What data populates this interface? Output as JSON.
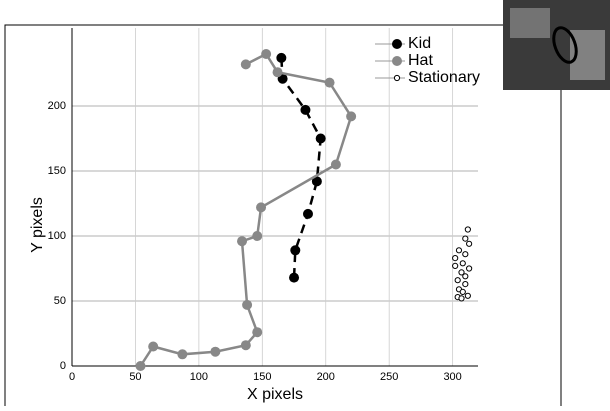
{
  "chart_data": {
    "type": "line",
    "xlabel": "X pixels",
    "ylabel": "Y pixels",
    "xlim": [
      0,
      320
    ],
    "ylim": [
      0,
      260
    ],
    "xticks": [
      0,
      50,
      100,
      150,
      200,
      250,
      300
    ],
    "yticks": [
      0,
      50,
      100,
      150,
      200
    ],
    "grid": true,
    "legend": "upper right",
    "series": [
      {
        "name": "Kid",
        "color": "#000000",
        "linestyle": "dashed",
        "marker": "filled",
        "x": [
          165,
          166,
          184,
          196,
          193,
          186,
          176,
          175
        ],
        "values": [
          237,
          221,
          197,
          175,
          142,
          117,
          89,
          68
        ]
      },
      {
        "name": "Hat",
        "color": "#888888",
        "linestyle": "solid",
        "marker": "filled",
        "x": [
          137,
          153,
          162,
          203,
          220,
          208,
          149,
          146,
          134,
          138,
          146,
          137,
          113,
          87,
          64,
          54
        ],
        "values": [
          232,
          240,
          226,
          218,
          192,
          155,
          122,
          100,
          96,
          47,
          26,
          16,
          11,
          9,
          15,
          0
        ]
      },
      {
        "name": "Stationary",
        "color": "#000000",
        "linestyle": "none",
        "marker": "open",
        "x": [
          312,
          310,
          313,
          305,
          310,
          302,
          308,
          302,
          313,
          307,
          310,
          304,
          310,
          305,
          308,
          304,
          307,
          312
        ],
        "values": [
          105,
          98,
          94,
          89,
          86,
          83,
          79,
          77,
          75,
          72,
          69,
          66,
          63,
          59,
          57,
          53,
          52,
          54
        ]
      }
    ]
  }
}
